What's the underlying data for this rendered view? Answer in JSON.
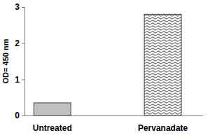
{
  "chart_data": {
    "type": "bar",
    "y_label": "OD= 450 nm",
    "categories": [
      "Untreated",
      "Pervanadate"
    ],
    "values": [
      0.35,
      2.8
    ],
    "colors": [
      "#c0c0c0",
      "#7a7a7a"
    ],
    "ylim": [
      0,
      3
    ],
    "yticks": [
      0,
      1,
      2,
      3
    ],
    "grid": false
  }
}
